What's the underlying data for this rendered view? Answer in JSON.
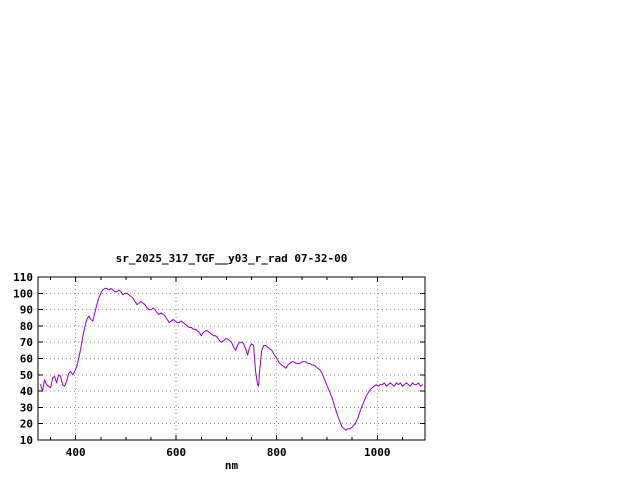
{
  "window": {
    "background": "#ffffff"
  },
  "chart_data": {
    "type": "line",
    "title": "sr_2025_317_TGF__y03_r_rad 07-32-00",
    "xlabel": "nm",
    "ylabel": "",
    "xlim": [
      325,
      1095
    ],
    "ylim": [
      10,
      110
    ],
    "x_ticks": [
      400,
      600,
      800,
      1000
    ],
    "x_minor_tick_step": 50,
    "y_ticks": [
      10,
      20,
      30,
      40,
      50,
      60,
      70,
      80,
      90,
      100,
      110
    ],
    "grid": true,
    "grid_color": "#9a9a9a",
    "axis_color": "#000000",
    "text_color": "#000000",
    "line_color": "#9400d3",
    "legend": "none",
    "series": [
      {
        "name": "sr_2025_317_TGF__y03_r_rad",
        "points": [
          [
            330,
            44
          ],
          [
            334,
            40
          ],
          [
            338,
            47
          ],
          [
            342,
            44
          ],
          [
            346,
            43
          ],
          [
            350,
            42
          ],
          [
            354,
            48
          ],
          [
            358,
            49
          ],
          [
            362,
            45
          ],
          [
            366,
            50
          ],
          [
            370,
            49
          ],
          [
            374,
            44
          ],
          [
            378,
            43
          ],
          [
            382,
            46
          ],
          [
            386,
            51
          ],
          [
            390,
            52
          ],
          [
            394,
            50
          ],
          [
            398,
            52
          ],
          [
            402,
            55
          ],
          [
            406,
            60
          ],
          [
            410,
            66
          ],
          [
            414,
            73
          ],
          [
            418,
            79
          ],
          [
            422,
            84
          ],
          [
            426,
            86
          ],
          [
            430,
            84
          ],
          [
            434,
            83
          ],
          [
            438,
            88
          ],
          [
            442,
            93
          ],
          [
            446,
            97
          ],
          [
            450,
            100
          ],
          [
            454,
            102
          ],
          [
            458,
            103
          ],
          [
            462,
            103
          ],
          [
            466,
            102
          ],
          [
            470,
            103
          ],
          [
            474,
            102
          ],
          [
            478,
            101
          ],
          [
            482,
            101
          ],
          [
            486,
            102
          ],
          [
            490,
            101
          ],
          [
            494,
            99
          ],
          [
            498,
            100
          ],
          [
            502,
            100
          ],
          [
            506,
            99
          ],
          [
            510,
            98
          ],
          [
            514,
            97
          ],
          [
            518,
            95
          ],
          [
            522,
            93
          ],
          [
            526,
            94
          ],
          [
            530,
            95
          ],
          [
            534,
            94
          ],
          [
            538,
            93
          ],
          [
            542,
            91
          ],
          [
            546,
            90
          ],
          [
            550,
            90
          ],
          [
            554,
            91
          ],
          [
            558,
            90
          ],
          [
            562,
            88
          ],
          [
            566,
            87
          ],
          [
            570,
            88
          ],
          [
            574,
            87
          ],
          [
            578,
            86
          ],
          [
            582,
            84
          ],
          [
            586,
            82
          ],
          [
            590,
            83
          ],
          [
            594,
            84
          ],
          [
            598,
            83
          ],
          [
            602,
            82
          ],
          [
            606,
            82
          ],
          [
            610,
            83
          ],
          [
            614,
            82
          ],
          [
            618,
            81
          ],
          [
            622,
            80
          ],
          [
            626,
            79
          ],
          [
            630,
            79
          ],
          [
            634,
            78
          ],
          [
            638,
            78
          ],
          [
            642,
            77
          ],
          [
            646,
            76
          ],
          [
            650,
            74
          ],
          [
            654,
            76
          ],
          [
            658,
            77
          ],
          [
            662,
            77
          ],
          [
            666,
            76
          ],
          [
            670,
            75
          ],
          [
            674,
            74
          ],
          [
            678,
            74
          ],
          [
            682,
            73
          ],
          [
            686,
            71
          ],
          [
            690,
            70
          ],
          [
            694,
            71
          ],
          [
            698,
            72
          ],
          [
            702,
            72
          ],
          [
            706,
            71
          ],
          [
            710,
            70
          ],
          [
            714,
            67
          ],
          [
            718,
            65
          ],
          [
            722,
            68
          ],
          [
            726,
            70
          ],
          [
            730,
            70
          ],
          [
            734,
            69
          ],
          [
            738,
            66
          ],
          [
            742,
            62
          ],
          [
            746,
            67
          ],
          [
            750,
            69
          ],
          [
            754,
            68
          ],
          [
            758,
            52
          ],
          [
            762,
            44
          ],
          [
            764,
            43
          ],
          [
            766,
            52
          ],
          [
            770,
            65
          ],
          [
            774,
            68
          ],
          [
            778,
            68
          ],
          [
            782,
            67
          ],
          [
            786,
            66
          ],
          [
            790,
            65
          ],
          [
            794,
            63
          ],
          [
            798,
            61
          ],
          [
            802,
            59
          ],
          [
            806,
            57
          ],
          [
            810,
            56
          ],
          [
            814,
            55
          ],
          [
            818,
            54
          ],
          [
            822,
            56
          ],
          [
            826,
            57
          ],
          [
            830,
            58
          ],
          [
            834,
            58
          ],
          [
            838,
            57
          ],
          [
            842,
            57
          ],
          [
            846,
            57
          ],
          [
            850,
            58
          ],
          [
            854,
            58
          ],
          [
            858,
            58
          ],
          [
            862,
            57
          ],
          [
            866,
            57
          ],
          [
            870,
            56
          ],
          [
            874,
            56
          ],
          [
            878,
            55
          ],
          [
            882,
            54
          ],
          [
            886,
            53
          ],
          [
            890,
            51
          ],
          [
            894,
            48
          ],
          [
            898,
            45
          ],
          [
            902,
            42
          ],
          [
            906,
            39
          ],
          [
            910,
            36
          ],
          [
            914,
            32
          ],
          [
            918,
            28
          ],
          [
            922,
            24
          ],
          [
            926,
            21
          ],
          [
            930,
            18
          ],
          [
            934,
            17
          ],
          [
            938,
            16
          ],
          [
            942,
            17
          ],
          [
            946,
            17
          ],
          [
            950,
            18
          ],
          [
            954,
            19
          ],
          [
            958,
            21
          ],
          [
            962,
            24
          ],
          [
            966,
            28
          ],
          [
            970,
            31
          ],
          [
            974,
            34
          ],
          [
            978,
            37
          ],
          [
            982,
            39
          ],
          [
            986,
            41
          ],
          [
            990,
            42
          ],
          [
            994,
            43
          ],
          [
            998,
            44
          ],
          [
            1002,
            43
          ],
          [
            1006,
            44
          ],
          [
            1010,
            44
          ],
          [
            1014,
            45
          ],
          [
            1018,
            43
          ],
          [
            1022,
            44
          ],
          [
            1026,
            45
          ],
          [
            1030,
            44
          ],
          [
            1034,
            43
          ],
          [
            1038,
            45
          ],
          [
            1042,
            44
          ],
          [
            1046,
            45
          ],
          [
            1050,
            43
          ],
          [
            1054,
            44
          ],
          [
            1058,
            45
          ],
          [
            1062,
            44
          ],
          [
            1066,
            43
          ],
          [
            1070,
            45
          ],
          [
            1074,
            44
          ],
          [
            1078,
            44
          ],
          [
            1082,
            45
          ],
          [
            1086,
            43
          ],
          [
            1090,
            44
          ]
        ]
      }
    ]
  }
}
